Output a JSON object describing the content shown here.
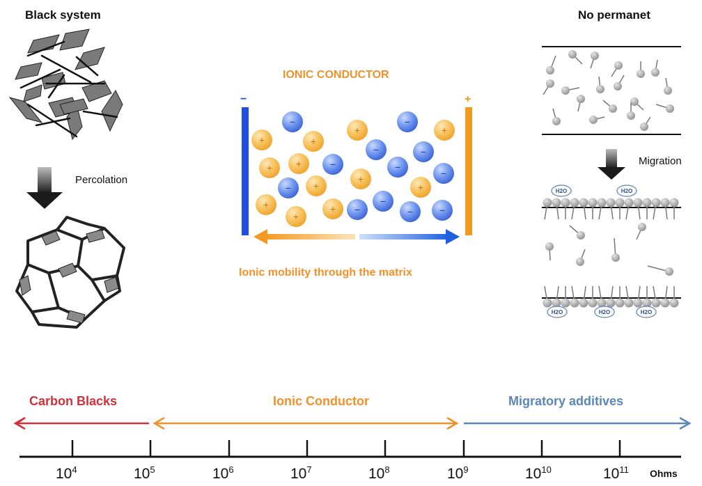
{
  "left": {
    "title": "Black system",
    "arrow_label": "Percolation"
  },
  "center": {
    "title": "IONIC CONDUCTOR",
    "minus_sign": "−",
    "plus_sign": "+",
    "caption": "Ionic mobility through the matrix"
  },
  "right": {
    "title": "No permanet",
    "arrow_label": "Migration",
    "molecule_label": "H2O",
    "molecule_label_sub": "2"
  },
  "scale": {
    "ranges": [
      {
        "label": "Carbon Blacks",
        "color": "#d2303a"
      },
      {
        "label": "Ionic Conductor",
        "color": "#f0912a"
      },
      {
        "label": "Migratory additives",
        "color": "#5b86b8"
      }
    ],
    "ticks": [
      {
        "base": "10",
        "exp": "4"
      },
      {
        "base": "10",
        "exp": "5"
      },
      {
        "base": "10",
        "exp": "6"
      },
      {
        "base": "10",
        "exp": "7"
      },
      {
        "base": "10",
        "exp": "8"
      },
      {
        "base": "10",
        "exp": "9"
      },
      {
        "base": "10",
        "exp": "10"
      },
      {
        "base": "10",
        "exp": "11"
      }
    ],
    "unit": "Ohms"
  },
  "colors": {
    "anion": "#3f6fe0",
    "cation": "#f2b23a",
    "flake": "#7a7a7a",
    "grey_ball": "#9a9a9a"
  }
}
